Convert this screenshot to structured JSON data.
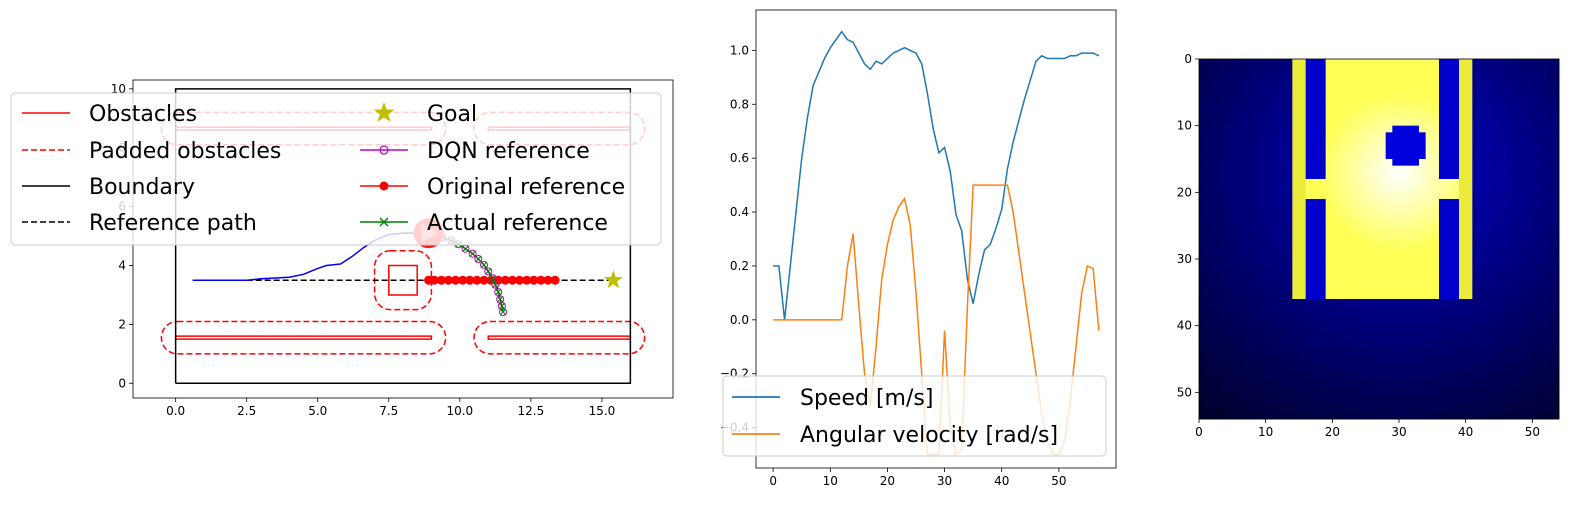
{
  "chart_data": [
    {
      "type": "line",
      "panel": "map",
      "xlim": [
        -1.5,
        17.5
      ],
      "ylim": [
        -0.5,
        10.3
      ],
      "xticks": [
        0.0,
        2.5,
        5.0,
        7.5,
        10.0,
        12.5,
        15.0
      ],
      "xtick_labels": [
        "0.0",
        "2.5",
        "5.0",
        "7.5",
        "10.0",
        "12.5",
        "15.0"
      ],
      "yticks": [
        0,
        2,
        4,
        6,
        8,
        10
      ],
      "ytick_labels": [
        "0",
        "2",
        "4",
        "6",
        "8",
        "10"
      ],
      "grid": false,
      "legend_position": "top",
      "legend": [
        {
          "label": "Obstacles",
          "style": "solid",
          "color": "#ff0000",
          "marker": ""
        },
        {
          "label": "Goal",
          "style": "none",
          "color": "#bfbf00",
          "marker": "star"
        },
        {
          "label": "Padded obstacles",
          "style": "dashed",
          "color": "#ff0000",
          "marker": ""
        },
        {
          "label": "DQN reference",
          "style": "solid",
          "color": "#bf00bf",
          "marker": "o-open"
        },
        {
          "label": "Boundary",
          "style": "solid",
          "color": "#000000",
          "marker": ""
        },
        {
          "label": "Original reference",
          "style": "solid",
          "color": "#ff0000",
          "marker": "o"
        },
        {
          "label": "Reference path",
          "style": "dashed",
          "color": "#000000",
          "marker": ""
        },
        {
          "label": "Actual reference",
          "style": "solid",
          "color": "#008000",
          "marker": "x"
        }
      ],
      "boundary": [
        [
          0,
          0
        ],
        [
          16,
          0
        ],
        [
          16,
          10
        ],
        [
          0,
          10
        ],
        [
          0,
          0
        ]
      ],
      "obstacles": [
        [
          [
            0.0,
            1.5
          ],
          [
            9.0,
            1.5
          ],
          [
            9.0,
            1.6
          ],
          [
            0.0,
            1.6
          ]
        ],
        [
          [
            11.0,
            1.5
          ],
          [
            16.0,
            1.5
          ],
          [
            16.0,
            1.6
          ],
          [
            11.0,
            1.6
          ]
        ],
        [
          [
            0.0,
            8.6
          ],
          [
            9.0,
            8.6
          ],
          [
            9.0,
            8.7
          ],
          [
            0.0,
            8.7
          ]
        ],
        [
          [
            11.0,
            8.6
          ],
          [
            16.0,
            8.6
          ],
          [
            16.0,
            8.7
          ],
          [
            11.0,
            8.7
          ]
        ],
        [
          [
            7.5,
            3.0
          ],
          [
            8.5,
            3.0
          ],
          [
            8.5,
            4.0
          ],
          [
            7.5,
            4.0
          ]
        ]
      ],
      "padded_obstacles": [
        {
          "x0": -0.5,
          "y0": 1.0,
          "x1": 9.5,
          "y1": 2.1
        },
        {
          "x0": 10.5,
          "y0": 1.0,
          "x1": 16.5,
          "y1": 2.1
        },
        {
          "x0": -0.5,
          "y0": 8.1,
          "x1": 9.5,
          "y1": 9.2
        },
        {
          "x0": 10.5,
          "y0": 8.1,
          "x1": 16.5,
          "y1": 9.2
        },
        {
          "x0": 7.0,
          "y0": 2.5,
          "x1": 9.0,
          "y1": 4.5
        }
      ],
      "reference_path": {
        "x": [
          0.6,
          15.4
        ],
        "y": [
          3.5,
          3.5
        ]
      },
      "goal": {
        "x": 15.4,
        "y": 3.5
      },
      "trajectory": {
        "x": [
          0.6,
          1.5,
          2.5,
          3.0,
          4.0,
          4.5,
          5.0,
          5.3,
          5.8,
          6.2,
          6.6,
          7.0,
          7.5,
          8.0,
          8.5,
          9.0
        ],
        "y": [
          3.5,
          3.5,
          3.5,
          3.55,
          3.6,
          3.7,
          3.9,
          4.0,
          4.05,
          4.3,
          4.6,
          4.85,
          5.05,
          5.1,
          5.1,
          5.05
        ]
      },
      "original_reference": {
        "x": [
          8.9,
          9.1,
          9.35,
          9.6,
          9.85,
          10.1,
          10.35,
          10.6,
          10.85,
          11.1,
          11.35,
          11.6,
          11.85,
          12.1,
          12.35,
          12.6,
          12.85,
          13.1,
          13.35
        ],
        "y": [
          3.5,
          3.5,
          3.5,
          3.5,
          3.5,
          3.5,
          3.5,
          3.5,
          3.5,
          3.5,
          3.5,
          3.5,
          3.5,
          3.5,
          3.5,
          3.5,
          3.5,
          3.5,
          3.5
        ]
      },
      "dqn_reference": {
        "x": [
          9.1,
          9.4,
          9.7,
          9.95,
          10.2,
          10.45,
          10.65,
          10.85,
          11.0,
          11.15,
          11.25,
          11.35,
          11.42,
          11.48,
          11.52
        ],
        "y": [
          5.0,
          4.95,
          4.85,
          4.72,
          4.57,
          4.4,
          4.22,
          4.02,
          3.8,
          3.57,
          3.35,
          3.1,
          2.85,
          2.62,
          2.42
        ]
      },
      "robot": {
        "x": 8.9,
        "y": 5.1
      }
    },
    {
      "type": "line",
      "panel": "velocities",
      "xlim": [
        -3,
        60
      ],
      "ylim": [
        -0.55,
        1.15
      ],
      "xticks": [
        0,
        10,
        20,
        30,
        40,
        50
      ],
      "xtick_labels": [
        "0",
        "10",
        "20",
        "30",
        "40",
        "50"
      ],
      "yticks": [
        -0.4,
        -0.2,
        0.0,
        0.2,
        0.4,
        0.6,
        0.8,
        1.0
      ],
      "ytick_labels": [
        "−0.4",
        "−0.2",
        "0.0",
        "0.2",
        "0.4",
        "0.6",
        "0.8",
        "1.0"
      ],
      "grid": false,
      "legend_position": "lower center",
      "series": [
        {
          "name": "Speed [m/s]",
          "color": "#1f77b4",
          "values": [
            0.2,
            0.2,
            0.0,
            0.2,
            0.4,
            0.6,
            0.75,
            0.87,
            0.92,
            0.97,
            1.01,
            1.04,
            1.07,
            1.04,
            1.03,
            0.99,
            0.95,
            0.93,
            0.96,
            0.95,
            0.97,
            0.99,
            1.0,
            1.01,
            1.0,
            0.99,
            0.95,
            0.84,
            0.71,
            0.62,
            0.64,
            0.55,
            0.39,
            0.33,
            0.15,
            0.06,
            0.17,
            0.26,
            0.28,
            0.34,
            0.41,
            0.56,
            0.66,
            0.74,
            0.82,
            0.89,
            0.96,
            0.98,
            0.97,
            0.97,
            0.97,
            0.97,
            0.98,
            0.98,
            0.99,
            0.99,
            0.99,
            0.98
          ]
        },
        {
          "name": "Angular velocity [rad/s]",
          "color": "#ff7f0e",
          "values": [
            0.0,
            0.0,
            0.0,
            0.0,
            0.0,
            0.0,
            0.0,
            0.0,
            0.0,
            0.0,
            0.0,
            0.0,
            0.0,
            0.2,
            0.32,
            0.05,
            -0.2,
            -0.32,
            -0.1,
            0.15,
            0.28,
            0.37,
            0.42,
            0.45,
            0.35,
            0.1,
            -0.2,
            -0.5,
            -0.5,
            -0.5,
            -0.04,
            -0.4,
            -0.5,
            -0.48,
            0.05,
            0.5,
            0.5,
            0.5,
            0.5,
            0.5,
            0.5,
            0.5,
            0.4,
            0.25,
            0.1,
            -0.05,
            -0.2,
            -0.35,
            -0.45,
            -0.5,
            -0.5,
            -0.45,
            -0.3,
            -0.1,
            0.1,
            0.2,
            0.19,
            -0.04
          ]
        }
      ]
    },
    {
      "type": "heatmap",
      "panel": "occupancy",
      "size": 54,
      "xlim": [
        0,
        54
      ],
      "ylim": [
        54,
        0
      ],
      "xticks": [
        0,
        10,
        20,
        30,
        40,
        50
      ],
      "xtick_labels": [
        "0",
        "10",
        "20",
        "30",
        "40",
        "50"
      ],
      "yticks": [
        0,
        10,
        20,
        30,
        40,
        50
      ],
      "ytick_labels": [
        "0",
        "10",
        "20",
        "30",
        "40",
        "50"
      ],
      "free_region": {
        "col0": 14,
        "col1": 41,
        "row0": 0,
        "row1": 36
      },
      "walls": [
        {
          "col0": 14,
          "col1": 16,
          "row0": 0,
          "row1": 36
        },
        {
          "col0": 39,
          "col1": 41,
          "row0": 0,
          "row1": 36
        }
      ],
      "blocked": [
        {
          "col0": 16,
          "col1": 19,
          "row0": 0,
          "row1": 18
        },
        {
          "col0": 16,
          "col1": 19,
          "row0": 21,
          "row1": 36
        },
        {
          "col0": 36,
          "col1": 39,
          "row0": 0,
          "row1": 18
        },
        {
          "col0": 36,
          "col1": 39,
          "row0": 21,
          "row1": 36
        }
      ],
      "obstacle_disk": {
        "col": 31,
        "row": 13,
        "radius": 3.5
      },
      "highlight_center": {
        "col": 30,
        "row": 17
      }
    }
  ]
}
